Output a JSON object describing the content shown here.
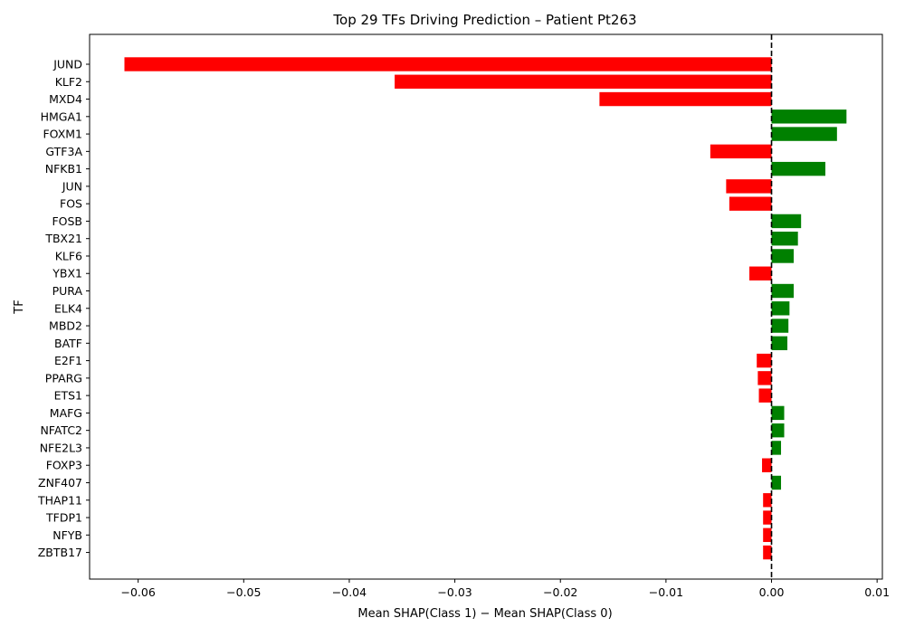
{
  "chart_data": {
    "type": "bar",
    "orientation": "horizontal",
    "title": "Top 29 TFs Driving Prediction – Patient Pt263",
    "xlabel": "Mean SHAP(Class 1) − Mean SHAP(Class 0)",
    "ylabel": "TF",
    "xlim": [
      -0.0646,
      0.0105
    ],
    "xticks": [
      -0.06,
      -0.05,
      -0.04,
      -0.03,
      -0.02,
      -0.01,
      0.0,
      0.01
    ],
    "xtick_labels": [
      "−0.06",
      "−0.05",
      "−0.04",
      "−0.03",
      "−0.02",
      "−0.01",
      "0.00",
      "0.01"
    ],
    "grid": false,
    "reference_line": {
      "x": 0,
      "style": "dashed",
      "color": "#000000"
    },
    "colors": {
      "negative": "#ff0000",
      "positive": "#008000"
    },
    "categories": [
      "JUND",
      "KLF2",
      "MXD4",
      "HMGA1",
      "FOXM1",
      "GTF3A",
      "NFKB1",
      "JUN",
      "FOS",
      "FOSB",
      "TBX21",
      "KLF6",
      "YBX1",
      "PURA",
      "ELK4",
      "MBD2",
      "BATF",
      "E2F1",
      "PPARG",
      "ETS1",
      "MAFG",
      "NFATC2",
      "NFE2L3",
      "FOXP3",
      "ZNF407",
      "THAP11",
      "TFDP1",
      "NFYB",
      "ZBTB17"
    ],
    "values": [
      -0.0613,
      -0.0357,
      -0.0163,
      0.0071,
      0.0062,
      -0.0058,
      0.0051,
      -0.0043,
      -0.004,
      0.0028,
      0.0025,
      0.0021,
      -0.0021,
      0.0021,
      0.0017,
      0.0016,
      0.0015,
      -0.0014,
      -0.0013,
      -0.0012,
      0.0012,
      0.0012,
      0.0009,
      -0.0009,
      0.0009,
      -0.0008,
      -0.0008,
      -0.0008,
      -0.0008
    ]
  }
}
